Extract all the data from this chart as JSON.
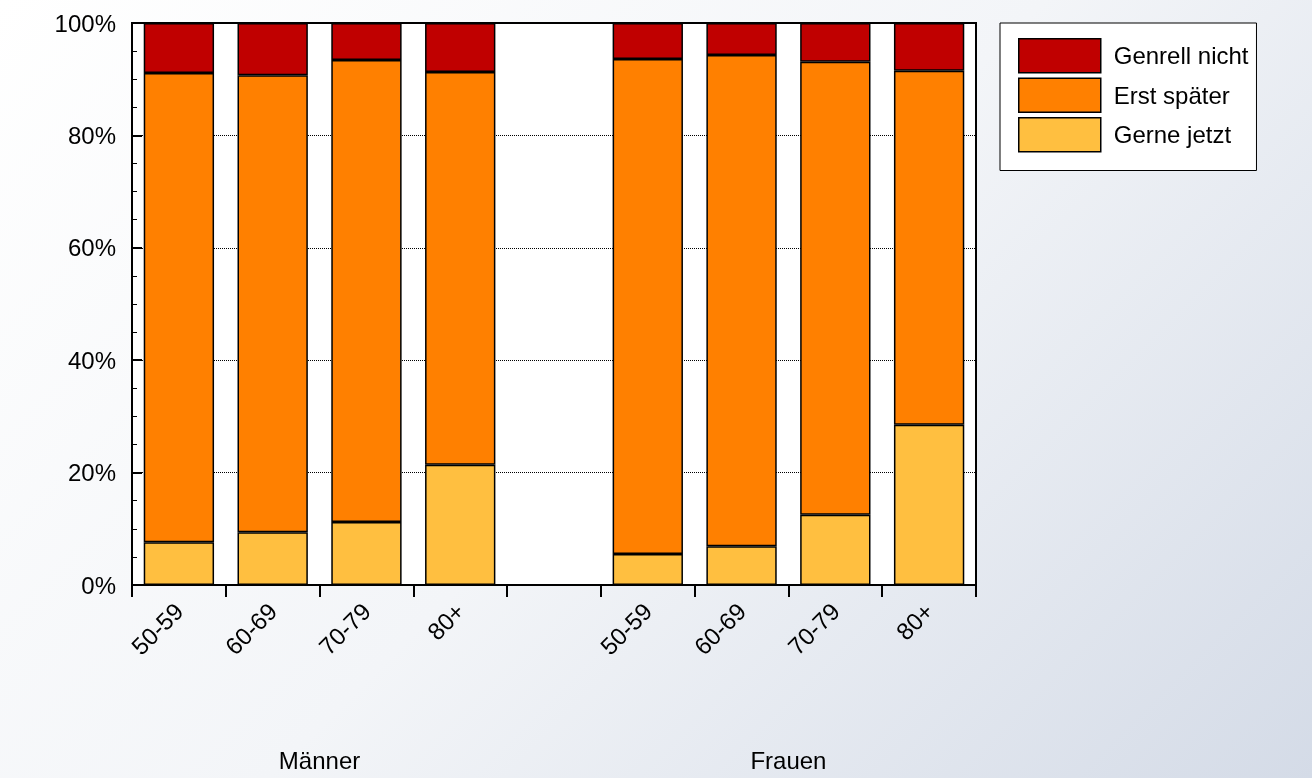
{
  "chart_data": {
    "type": "bar",
    "stacked": true,
    "categories": [
      "50-59",
      "60-69",
      "70-79",
      "80+",
      null,
      "50-59",
      "60-69",
      "70-79",
      "80+"
    ],
    "series": [
      {
        "name": "Gerne jetzt",
        "color": "#ffbf40",
        "values": [
          7.6,
          9.4,
          11.2,
          21.4,
          null,
          5.5,
          6.9,
          12.5,
          28.5
        ]
      },
      {
        "name": "Erst später",
        "color": "#ff8000",
        "values": [
          83.5,
          81.3,
          82.2,
          69.9,
          null,
          88.1,
          87.4,
          80.6,
          63.0
        ]
      },
      {
        "name": "Genrell nicht",
        "color": "#c00000",
        "values": [
          8.9,
          9.3,
          6.6,
          8.7,
          null,
          6.4,
          5.7,
          6.9,
          8.5
        ]
      }
    ],
    "ylim": [
      0,
      100
    ],
    "yticks": [
      {
        "value": 0,
        "label": "0%"
      },
      {
        "value": 20,
        "label": "20%"
      },
      {
        "value": 40,
        "label": "40%"
      },
      {
        "value": 60,
        "label": "60%"
      },
      {
        "value": 80,
        "label": "80%"
      },
      {
        "value": 100,
        "label": "100%"
      }
    ],
    "grid": "y",
    "legend": "top right",
    "annotations": [
      "Männer",
      "Frauen"
    ]
  }
}
